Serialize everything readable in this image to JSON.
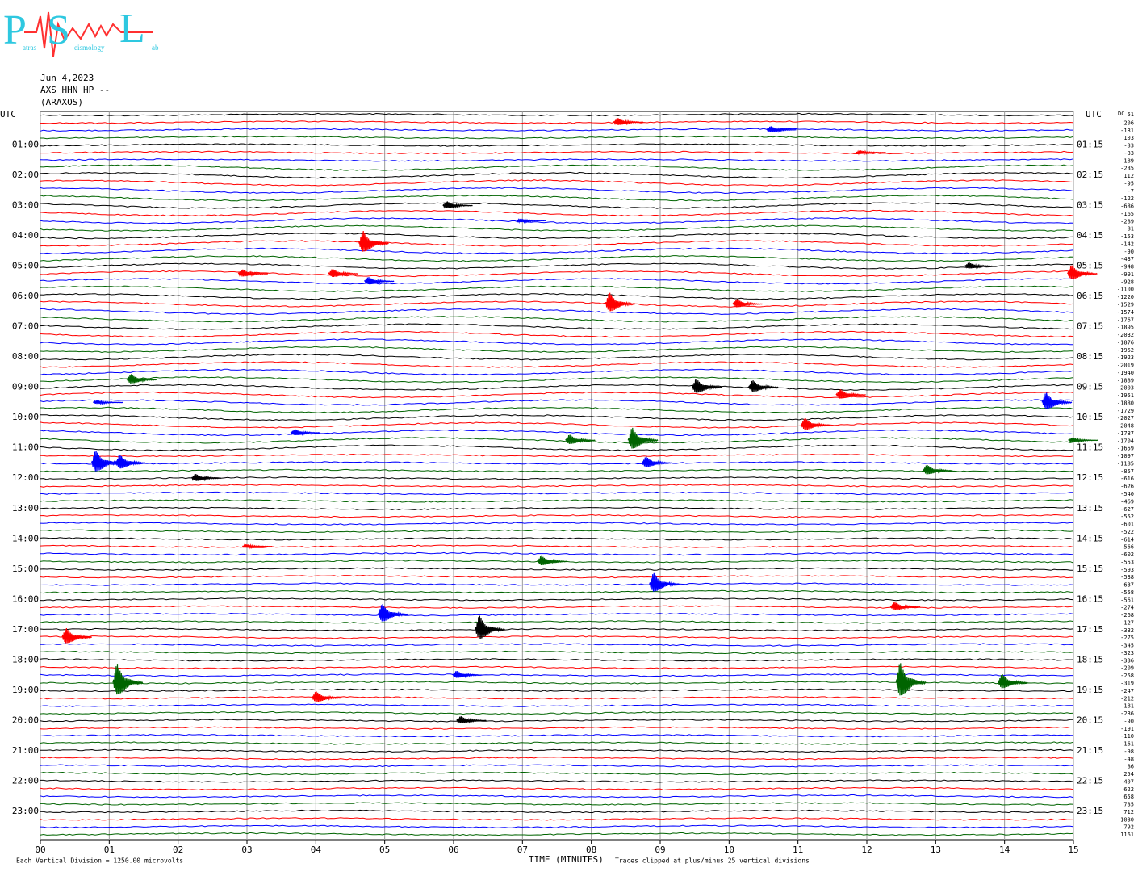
{
  "logo": {
    "p": "P",
    "p_rest": "atras",
    "s": "S",
    "s_rest": "eismology",
    "l": "L",
    "l_rest": "ab"
  },
  "chart_data": {
    "type": "helicorder",
    "title_lines": [
      "Jun 4,2023",
      "AXS HHN HP --",
      "(ARAXOS)"
    ],
    "utc_label": "UTC",
    "left_labels": [
      "01:00",
      "02:00",
      "03:00",
      "04:00",
      "05:00",
      "06:00",
      "07:00",
      "08:00",
      "09:00",
      "10:00",
      "11:00",
      "12:00",
      "13:00",
      "14:00",
      "15:00",
      "16:00",
      "17:00",
      "18:00",
      "19:00",
      "20:00",
      "21:00",
      "22:00",
      "23:00"
    ],
    "right_labels": [
      "01:15",
      "02:15",
      "03:15",
      "04:15",
      "05:15",
      "06:15",
      "07:15",
      "08:15",
      "09:15",
      "10:15",
      "11:15",
      "12:15",
      "13:15",
      "14:15",
      "15:15",
      "16:15",
      "17:15",
      "18:15",
      "19:15",
      "20:15",
      "21:15",
      "22:15",
      "23:15"
    ],
    "xlabel": "TIME (MINUTES)",
    "xlim": [
      0,
      15
    ],
    "xticks": [
      {
        "value": 0,
        "label": "00"
      },
      {
        "value": 1,
        "label": "01"
      },
      {
        "value": 2,
        "label": "02"
      },
      {
        "value": 3,
        "label": "03"
      },
      {
        "value": 4,
        "label": "04"
      },
      {
        "value": 5,
        "label": "05"
      },
      {
        "value": 6,
        "label": "06"
      },
      {
        "value": 7,
        "label": "07"
      },
      {
        "value": 8,
        "label": "08"
      },
      {
        "value": 9,
        "label": "09"
      },
      10,
      11,
      12,
      13,
      14,
      15
    ],
    "grid": true,
    "colors": [
      "#000000",
      "#ff0000",
      "#0000ff",
      "#006400"
    ],
    "scale_note": "Each Vertical Division = 1250.00 microvolts",
    "clip_note": "Traces clipped at plus/minus 25 vertical divisions",
    "dc_header": "DC",
    "dc_values": [
      51,
      206,
      -131,
      103,
      -83,
      -83,
      -189,
      -235,
      112,
      -95,
      -7,
      -122,
      -686,
      -165,
      -289,
      81,
      -153,
      -142,
      -90,
      -437,
      -948,
      -991,
      -928,
      -1100,
      -1220,
      -1529,
      -1574,
      -1767,
      -1895,
      -2032,
      -1876,
      -1952,
      -1923,
      -2019,
      -1940,
      -1889,
      -2003,
      -1951,
      -1880,
      -1729,
      -2027,
      -2048,
      -1787,
      -1704,
      -1659,
      -1097,
      -1185,
      -857,
      -616,
      -626,
      -540,
      -469,
      -627,
      -552,
      -601,
      -522,
      -614,
      -566,
      -602,
      -553,
      -593,
      -538,
      -637,
      -558,
      -561,
      -274,
      -268,
      -127,
      -332,
      -275,
      -345,
      -323,
      -336,
      -209,
      -258,
      -319,
      -247,
      -212,
      -181,
      -236,
      -90,
      -191,
      -110,
      -161,
      -98,
      -48,
      86,
      254,
      407,
      622,
      658,
      785,
      712,
      1030,
      792,
      1161
    ],
    "events": [
      {
        "trace": 1,
        "minute": 8.38,
        "amplitude": 0.6
      },
      {
        "trace": 2,
        "minute": 10.6,
        "amplitude": 0.5
      },
      {
        "trace": 5,
        "minute": 11.9,
        "amplitude": 0.3
      },
      {
        "trace": 12,
        "minute": 5.9,
        "amplitude": 0.6
      },
      {
        "trace": 14,
        "minute": 6.97,
        "amplitude": 0.3
      },
      {
        "trace": 17,
        "minute": 4.68,
        "amplitude": 1.8
      },
      {
        "trace": 20,
        "minute": 13.48,
        "amplitude": 0.5
      },
      {
        "trace": 21,
        "minute": 2.93,
        "amplitude": 0.6
      },
      {
        "trace": 21,
        "minute": 4.24,
        "amplitude": 0.7
      },
      {
        "trace": 21,
        "minute": 14.97,
        "amplitude": 1.2
      },
      {
        "trace": 22,
        "minute": 4.76,
        "amplitude": 0.6
      },
      {
        "trace": 25,
        "minute": 8.26,
        "amplitude": 1.6
      },
      {
        "trace": 25,
        "minute": 10.11,
        "amplitude": 0.7
      },
      {
        "trace": 35,
        "minute": 1.31,
        "amplitude": 0.8
      },
      {
        "trace": 36,
        "minute": 9.52,
        "amplitude": 1.2
      },
      {
        "trace": 36,
        "minute": 10.34,
        "amplitude": 1.0
      },
      {
        "trace": 37,
        "minute": 11.61,
        "amplitude": 0.8
      },
      {
        "trace": 38,
        "minute": 14.6,
        "amplitude": 1.4
      },
      {
        "trace": 38,
        "minute": 0.82,
        "amplitude": 0.3
      },
      {
        "trace": 41,
        "minute": 11.1,
        "amplitude": 1.0
      },
      {
        "trace": 42,
        "minute": 3.69,
        "amplitude": 0.5
      },
      {
        "trace": 43,
        "minute": 7.68,
        "amplitude": 0.8
      },
      {
        "trace": 43,
        "minute": 8.59,
        "amplitude": 1.8
      },
      {
        "trace": 43,
        "minute": 14.98,
        "amplitude": 0.4
      },
      {
        "trace": 46,
        "minute": 0.8,
        "amplitude": 1.8
      },
      {
        "trace": 46,
        "minute": 1.15,
        "amplitude": 1.2
      },
      {
        "trace": 46,
        "minute": 8.79,
        "amplitude": 0.9
      },
      {
        "trace": 47,
        "minute": 12.87,
        "amplitude": 0.8
      },
      {
        "trace": 48,
        "minute": 2.25,
        "amplitude": 0.6
      },
      {
        "trace": 57,
        "minute": 2.99,
        "amplitude": 0.3
      },
      {
        "trace": 59,
        "minute": 7.27,
        "amplitude": 0.8
      },
      {
        "trace": 62,
        "minute": 8.9,
        "amplitude": 1.6
      },
      {
        "trace": 65,
        "minute": 12.4,
        "amplitude": 0.7
      },
      {
        "trace": 66,
        "minute": 4.96,
        "amplitude": 1.5
      },
      {
        "trace": 68,
        "minute": 6.37,
        "amplitude": 2.0
      },
      {
        "trace": 69,
        "minute": 0.37,
        "amplitude": 1.3
      },
      {
        "trace": 74,
        "minute": 6.04,
        "amplitude": 0.6
      },
      {
        "trace": 75,
        "minute": 1.11,
        "amplitude": 2.6
      },
      {
        "trace": 75,
        "minute": 12.48,
        "amplitude": 2.8
      },
      {
        "trace": 75,
        "minute": 13.96,
        "amplitude": 1.2
      },
      {
        "trace": 77,
        "minute": 4.0,
        "amplitude": 0.9
      },
      {
        "trace": 80,
        "minute": 6.1,
        "amplitude": 0.6
      }
    ]
  }
}
